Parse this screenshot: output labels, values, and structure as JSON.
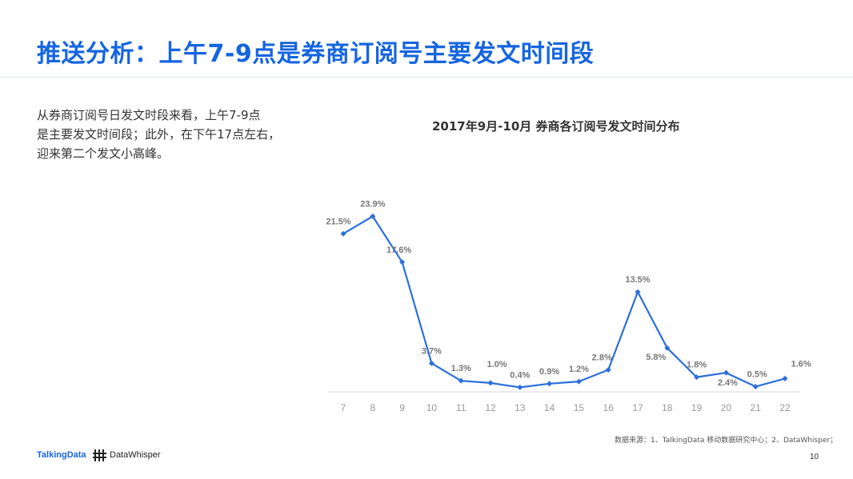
{
  "page": {
    "title": "推送分析：上午7-9点是券商订阅号主要发文时间段",
    "description_lines": [
      "从券商订阅号日发文时段来看，上午7-9点",
      "是主要发文时间段；此外，在下午17点左右，",
      "迎来第二个发文小高峰。"
    ],
    "source": "数据来源：1、TalkingData 移动数据研究中心；2、DataWhisper；",
    "logo_talkingdata": "TalkingData",
    "logo_datawhisper": "DataWhisper",
    "page_number": "10"
  },
  "colors": {
    "title": "#1565e0",
    "line": "#2b6fdc",
    "axis": "#d9d9d9",
    "tick_text": "#999999",
    "label_text": "#777777"
  },
  "chart_data": {
    "type": "line",
    "title": "2017年9月-10月 券商各订阅号发文时间分布",
    "categories": [
      "7",
      "8",
      "9",
      "10",
      "11",
      "12",
      "13",
      "14",
      "15",
      "16",
      "17",
      "18",
      "19",
      "20",
      "21",
      "22"
    ],
    "values": [
      21.5,
      23.9,
      17.6,
      3.7,
      1.3,
      1.0,
      0.4,
      0.9,
      1.2,
      2.8,
      13.5,
      5.8,
      1.8,
      2.4,
      0.5,
      1.6
    ],
    "value_labels": [
      "21.5%",
      "23.9%",
      "17.6%",
      "3.7%",
      "1.3%",
      "1.0%",
      "0.4%",
      "0.9%",
      "1.2%",
      "2.8%",
      "13.5%",
      "5.8%",
      "1.8%",
      "2.4%",
      "0.5%",
      "1.6%"
    ],
    "unit": "%",
    "ylim": [
      0,
      24.5
    ],
    "grid": false,
    "legend": "none",
    "marker": "diamond"
  }
}
